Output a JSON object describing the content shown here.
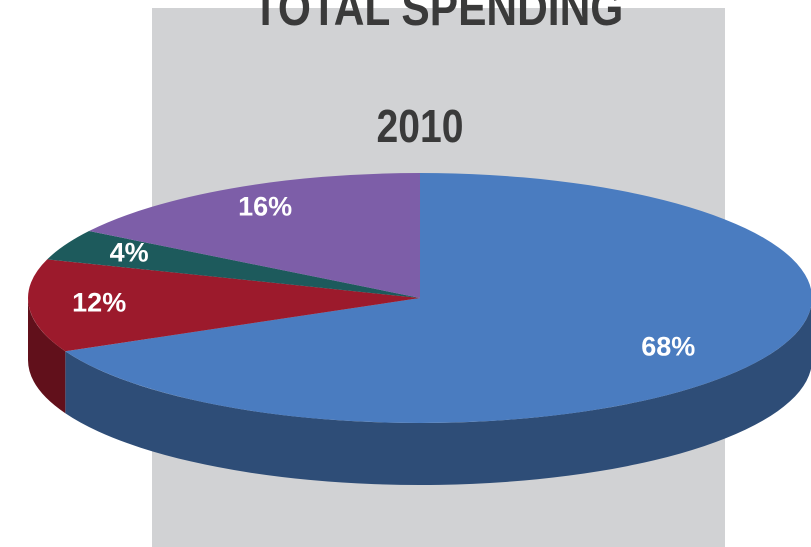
{
  "chart_data": {
    "type": "pie3d",
    "title": "TOTAL SPENDING",
    "subtitle": "2010",
    "values": [
      68,
      12,
      4,
      16
    ],
    "value_labels": [
      "68%",
      "12%",
      "4%",
      "16%"
    ],
    "colors": [
      "#4a7cc0",
      "#9c1a2c",
      "#1d5a5c",
      "#7d5ea8"
    ]
  }
}
